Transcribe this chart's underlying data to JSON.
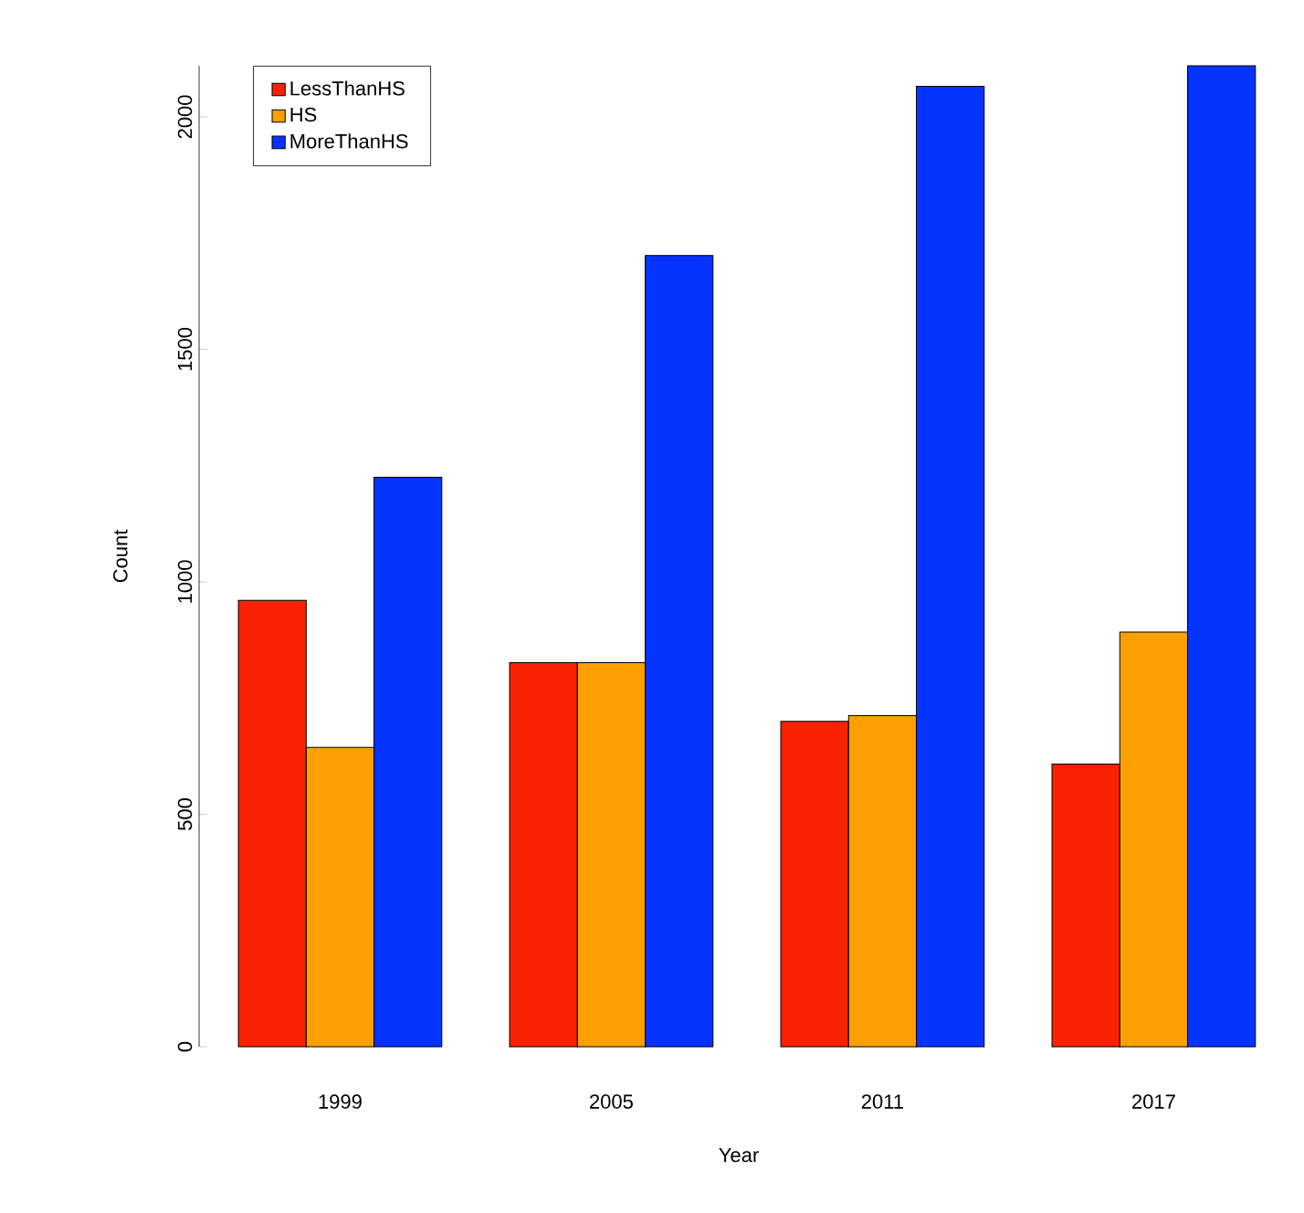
{
  "chart_data": {
    "type": "bar",
    "xlabel": "Year",
    "ylabel": "Count",
    "categories": [
      "1999",
      "2005",
      "2011",
      "2017"
    ],
    "series": [
      {
        "name": "LessThanHS",
        "color": "#f92200",
        "values": [
          960,
          826,
          700,
          608
        ]
      },
      {
        "name": "HS",
        "color": "#fba000",
        "values": [
          644,
          826,
          712,
          892
        ]
      },
      {
        "name": "MoreThanHS",
        "color": "#0533ff",
        "values": [
          1225,
          1702,
          2066,
          2110
        ]
      }
    ],
    "ylim": [
      0,
      2110
    ],
    "yticks": [
      0,
      500,
      1000,
      1500,
      2000
    ],
    "legend": "top left"
  }
}
